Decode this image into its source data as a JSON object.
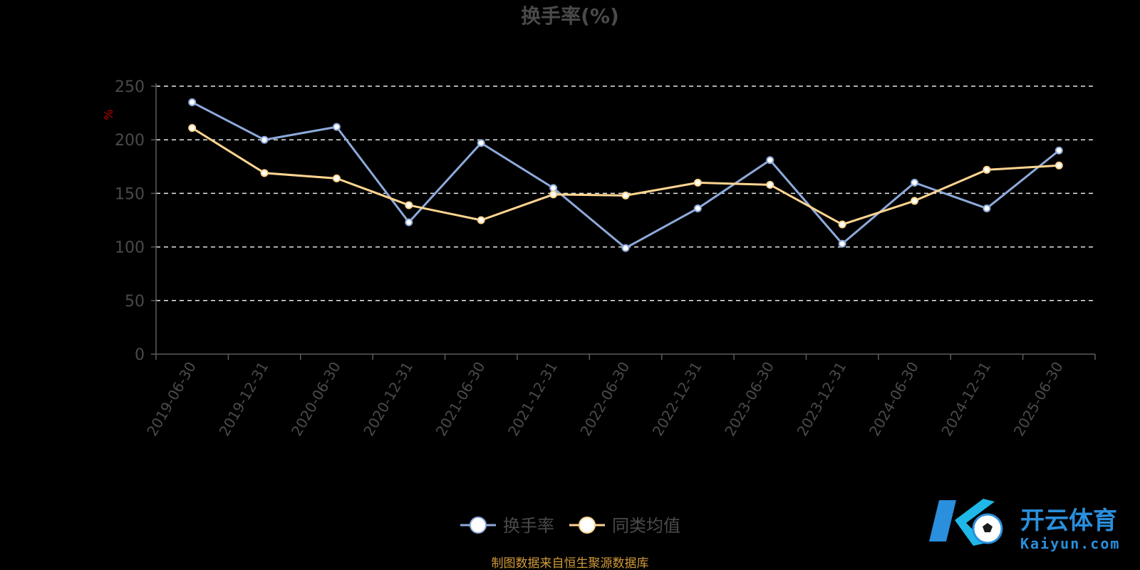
{
  "chart_data": {
    "type": "line",
    "title": "换手率(%)",
    "ylabel": "%",
    "ylim": [
      0,
      250
    ],
    "yticks": [
      0,
      50,
      100,
      150,
      200,
      250
    ],
    "grid": true,
    "legend_position": "bottom-center",
    "categories": [
      "2019-06-30",
      "2019-12-31",
      "2020-06-30",
      "2020-12-31",
      "2021-06-30",
      "2021-12-31",
      "2022-06-30",
      "2022-12-31",
      "2023-06-30",
      "2023-12-31",
      "2024-06-30",
      "2024-12-31",
      "2025-06-30"
    ],
    "series": [
      {
        "name": "换手率",
        "color": "#8eaadb",
        "values": [
          235,
          200,
          212,
          123,
          197,
          155,
          99,
          136,
          181,
          103,
          160,
          136,
          190
        ]
      },
      {
        "name": "同类均值",
        "color": "#ffd591",
        "values": [
          211,
          169,
          164,
          139,
          125,
          149,
          148,
          160,
          158,
          121,
          143,
          172,
          176
        ]
      }
    ]
  },
  "source_note": "制图数据来自恒生聚源数据库",
  "watermark": {
    "text": "开云体育",
    "sub": "Kaiyun.com"
  }
}
